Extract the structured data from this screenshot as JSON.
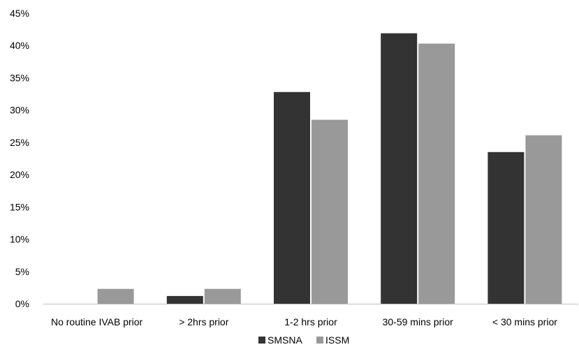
{
  "chart_data": {
    "type": "bar",
    "categories": [
      "No routine IVAB prior",
      "> 2hrs prior",
      "1-2 hrs prior",
      "30-59 mins prior",
      "< 30 mins prior"
    ],
    "series": [
      {
        "name": "SMSNA",
        "color": "#333333",
        "values": [
          0,
          1.2,
          32.8,
          41.9,
          23.5
        ]
      },
      {
        "name": "ISSM",
        "color": "#999999",
        "values": [
          2.3,
          2.3,
          28.5,
          40.3,
          26.1
        ]
      }
    ],
    "yticks": [
      "0%",
      "5%",
      "10%",
      "15%",
      "20%",
      "25%",
      "30%",
      "35%",
      "40%",
      "45%"
    ],
    "ylim": [
      0,
      45
    ],
    "grid": false,
    "legend": "bottom-center"
  }
}
